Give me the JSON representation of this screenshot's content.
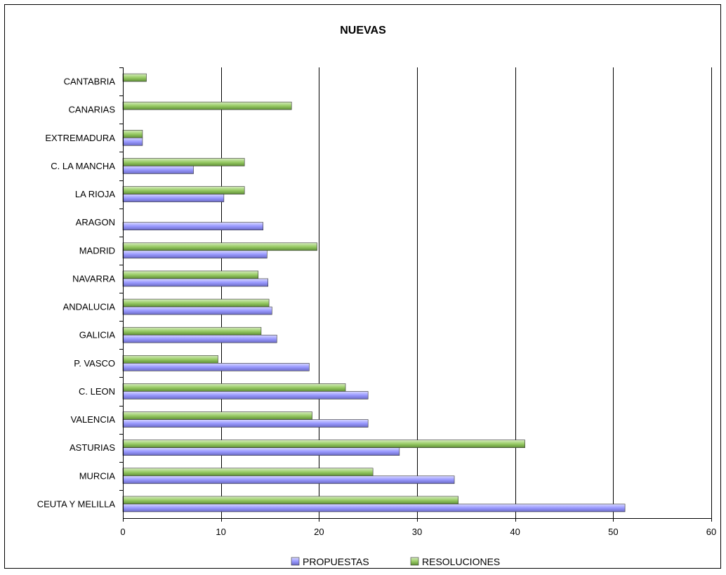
{
  "chart_data": {
    "type": "bar",
    "orientation": "horizontal",
    "title": "NUEVAS",
    "xlabel": "",
    "ylabel": "",
    "xlim": [
      0,
      60
    ],
    "x_ticks": [
      0,
      10,
      20,
      30,
      40,
      50,
      60
    ],
    "grid": "vertical",
    "legend_position": "bottom",
    "categories": [
      "CANTABRIA",
      "CANARIAS",
      "EXTREMADURA",
      "C. LA MANCHA",
      "LA RIOJA",
      "ARAGON",
      "MADRID",
      "NAVARRA",
      "ANDALUCIA",
      "GALICIA",
      "P. VASCO",
      "C. LEON",
      "VALENCIA",
      "ASTURIAS",
      "MURCIA",
      "CEUTA  Y MELILLA"
    ],
    "series": [
      {
        "name": "PROPUESTAS",
        "color": "#9999ff",
        "values": [
          0,
          0,
          2.0,
          7.2,
          10.3,
          14.3,
          14.7,
          14.8,
          15.2,
          15.7,
          19.0,
          25.0,
          25.0,
          28.2,
          33.8,
          51.2
        ]
      },
      {
        "name": "RESOLUCIONES",
        "color": "#99cc66",
        "values": [
          2.4,
          17.2,
          2.0,
          12.4,
          12.4,
          0,
          19.8,
          13.8,
          14.9,
          14.1,
          9.7,
          22.7,
          19.3,
          41.0,
          25.5,
          34.2
        ]
      }
    ]
  }
}
